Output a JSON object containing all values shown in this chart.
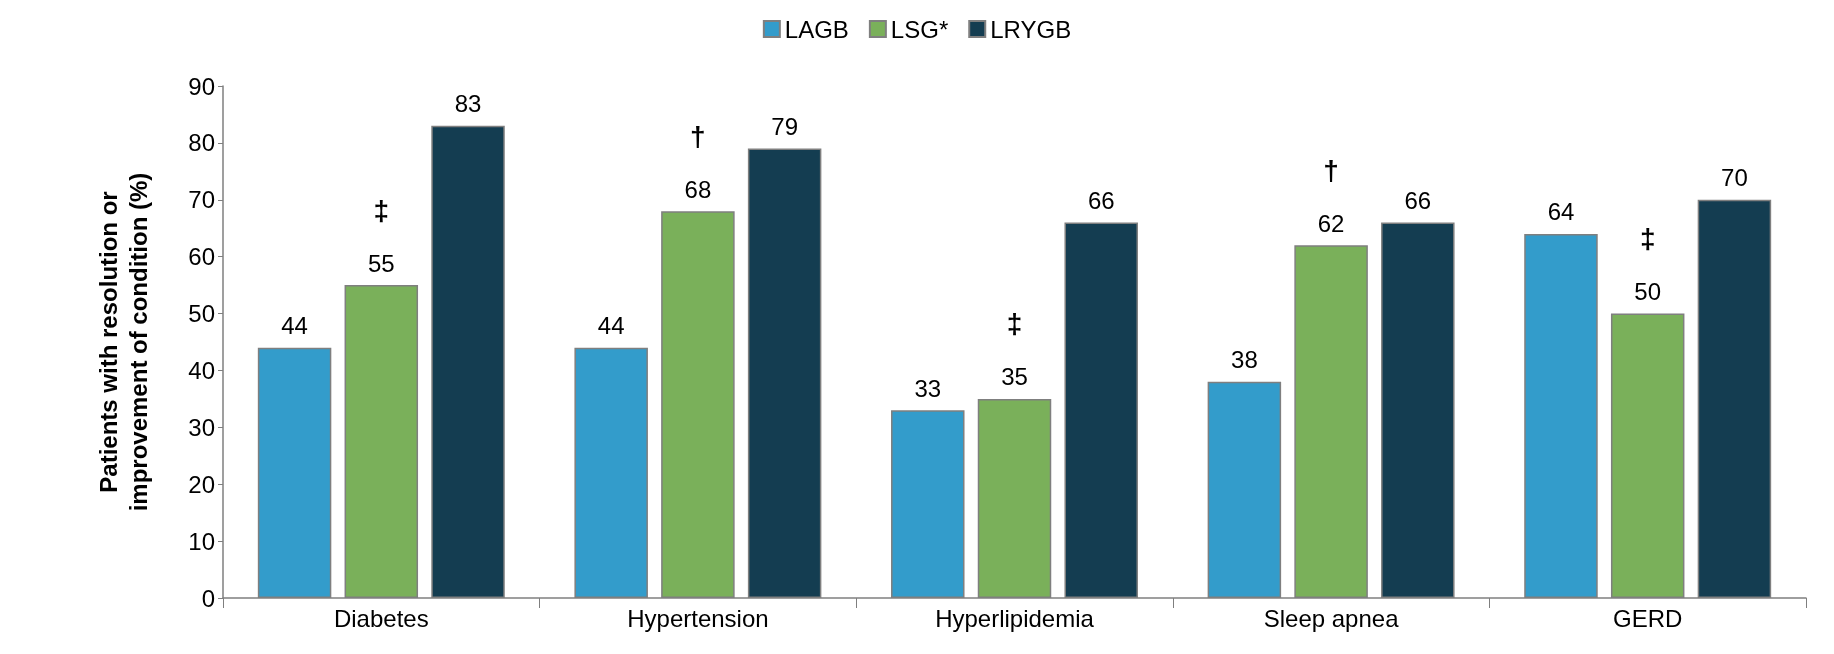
{
  "chart_data": {
    "type": "bar",
    "ylabel": "Patients with resolution or improvement of condition (%)",
    "categories": [
      "Diabetes",
      "Hypertension",
      "Hyperlipidemia",
      "Sleep apnea",
      "GERD"
    ],
    "series": [
      {
        "name": "LAGB",
        "color": "#339ccb",
        "values": [
          44,
          44,
          33,
          38,
          64
        ]
      },
      {
        "name": "LSG*",
        "color": "#7ab05a",
        "values": [
          55,
          68,
          35,
          62,
          50
        ]
      },
      {
        "name": "LRYGB",
        "color": "#143d51",
        "values": [
          83,
          79,
          66,
          66,
          70
        ]
      }
    ],
    "ylim": [
      0,
      90
    ],
    "yticks": [
      0,
      10,
      20,
      30,
      40,
      50,
      60,
      70,
      80,
      90
    ],
    "grid": false,
    "legend": "top",
    "data_labels": true,
    "annotations": [
      "‡",
      "†",
      "‡",
      "†",
      "‡"
    ]
  }
}
